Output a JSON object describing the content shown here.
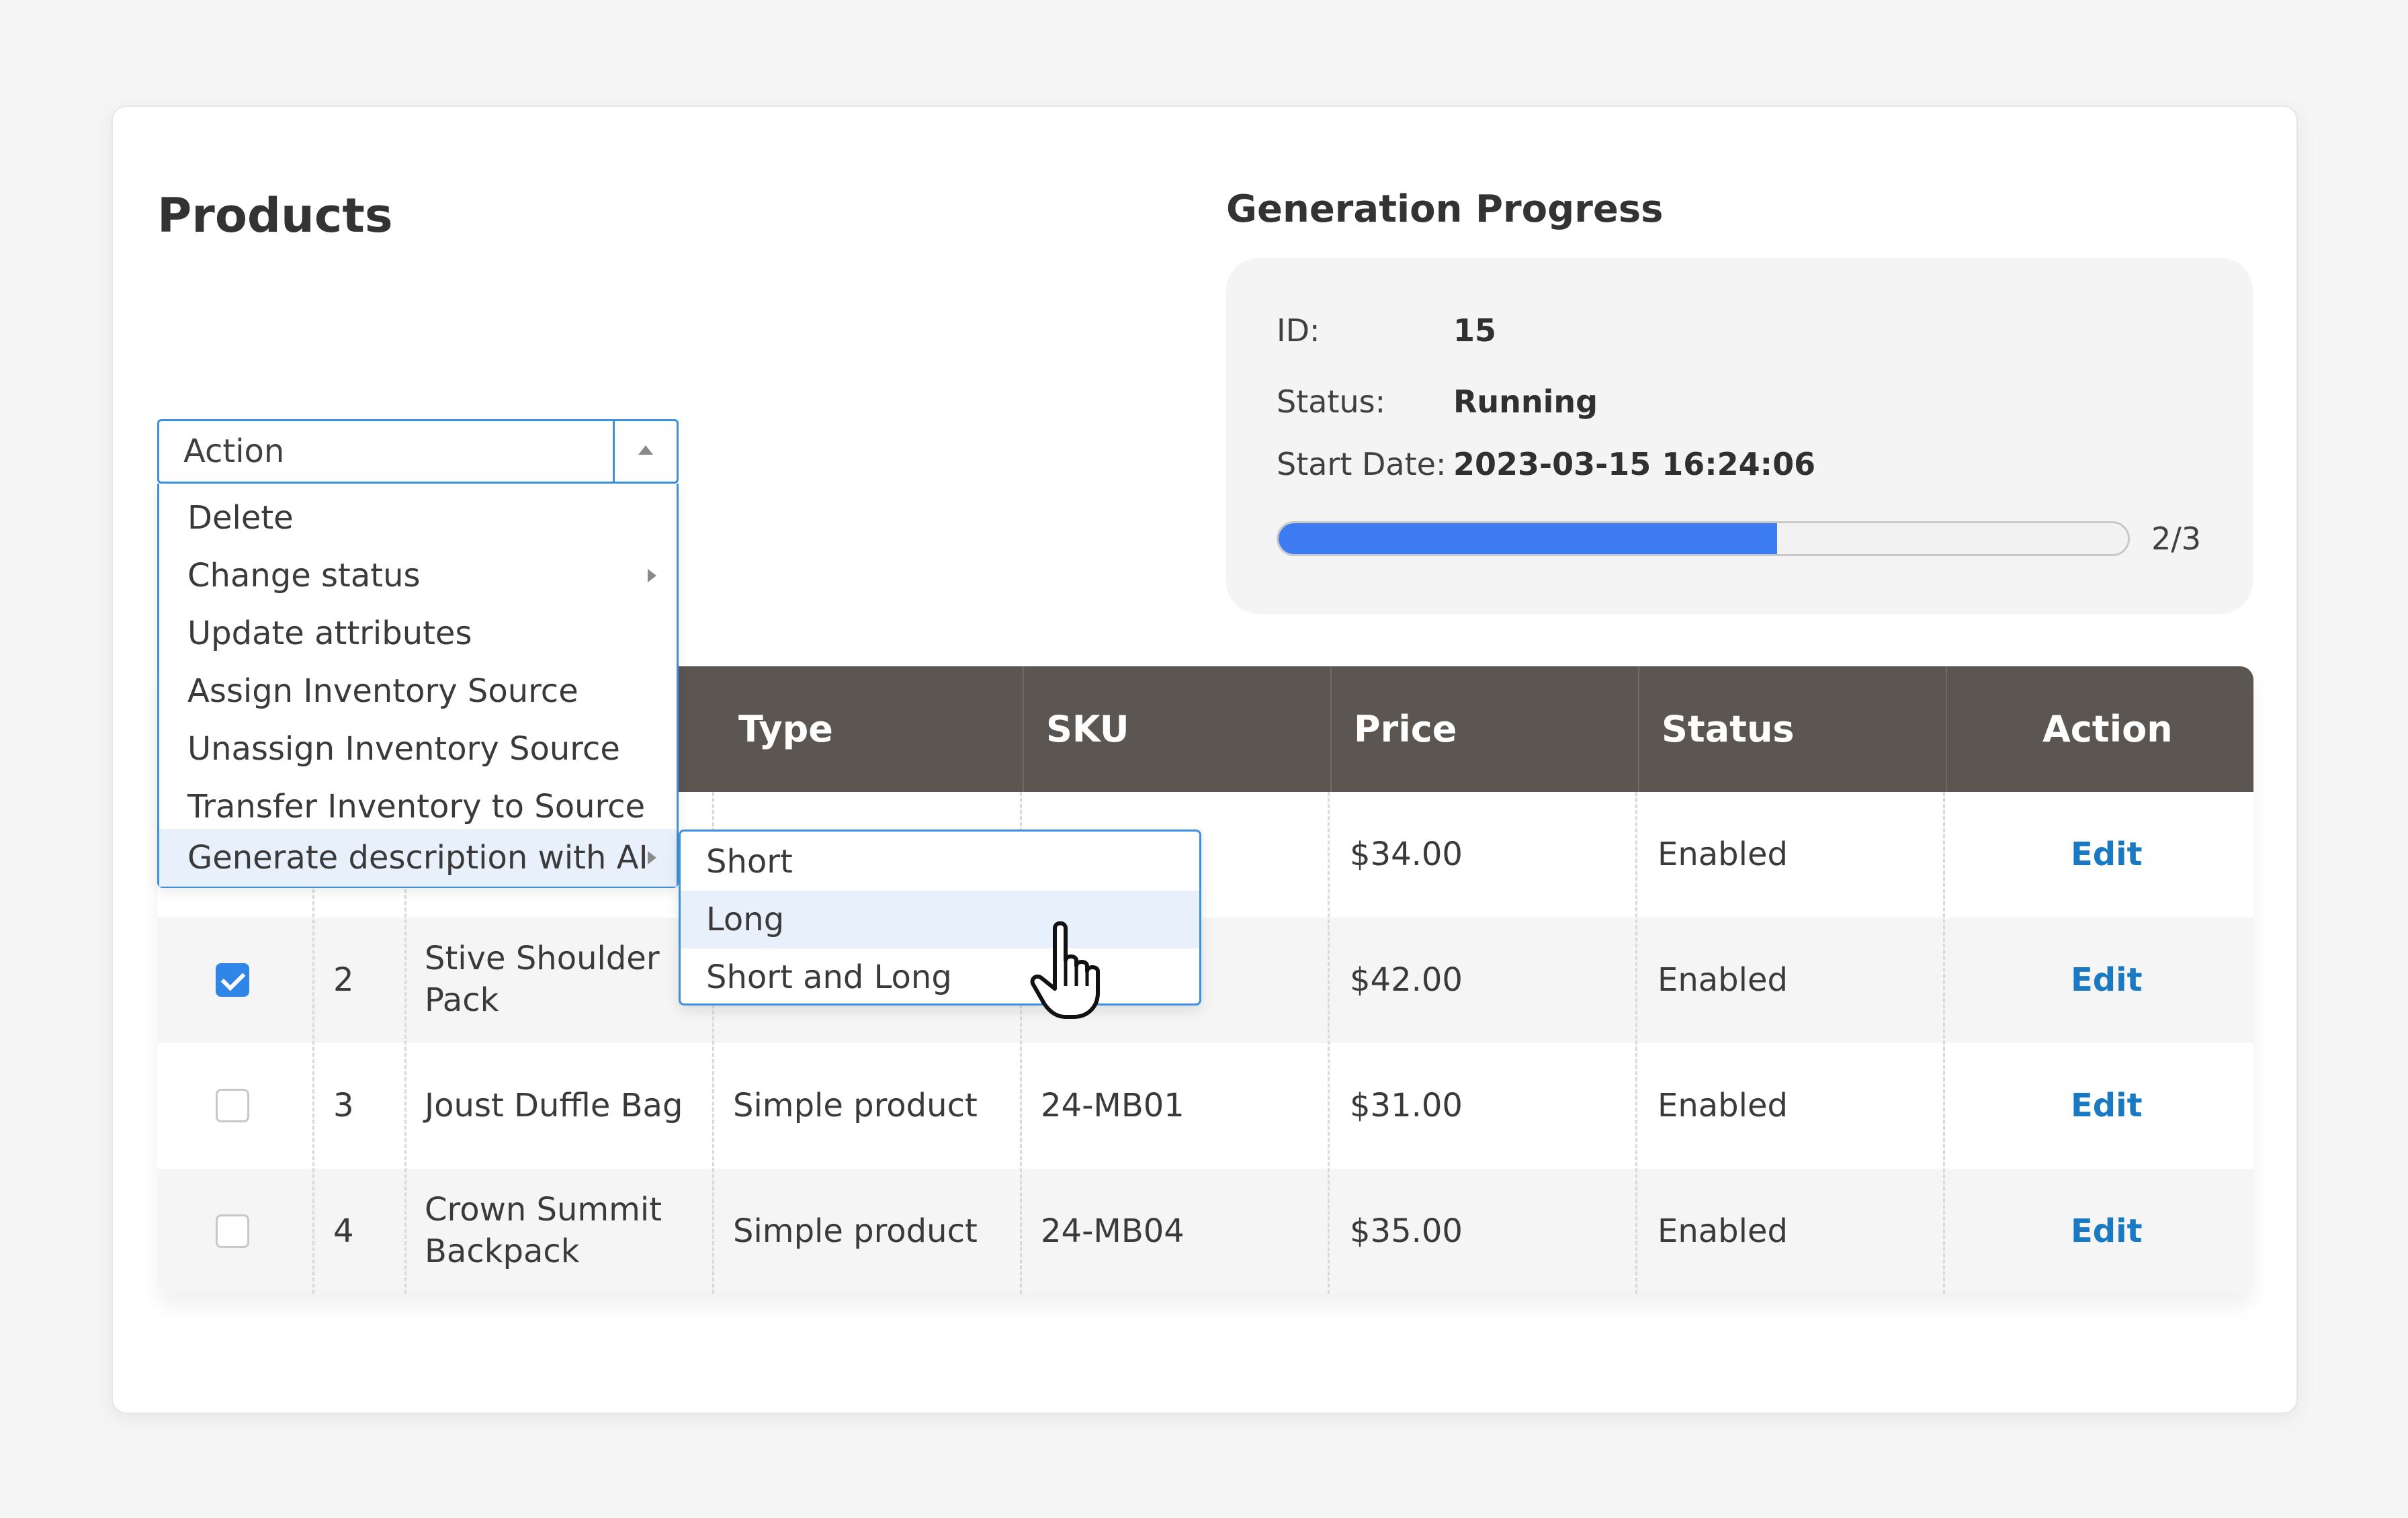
{
  "page": {
    "title": "Products"
  },
  "generation": {
    "title": "Generation Progress",
    "id_label": "ID:",
    "id_value": "15",
    "status_label": "Status:",
    "status_value": "Running",
    "start_label": "Start Date:",
    "start_value": "2023-03-15 16:24:06",
    "progress_text": "2/3",
    "progress_fraction": 0.5874,
    "progress_color": "#3d7bf2"
  },
  "action_select": {
    "label": "Action",
    "arrow_icon": "caret-up-icon",
    "items": [
      {
        "label": "Delete",
        "has_submenu": false
      },
      {
        "label": "Change status",
        "has_submenu": true
      },
      {
        "label": "Update attributes",
        "has_submenu": false
      },
      {
        "label": "Assign Inventory Source",
        "has_submenu": false
      },
      {
        "label": "Unassign Inventory Source",
        "has_submenu": false
      },
      {
        "label": "Transfer Inventory to Source",
        "has_submenu": false
      },
      {
        "label": "Generate description with AI",
        "has_submenu": true,
        "highlighted": true
      }
    ],
    "submenu": {
      "items": [
        {
          "label": "Short"
        },
        {
          "label": "Long",
          "highlighted": true
        },
        {
          "label": "Short and Long"
        }
      ]
    }
  },
  "table": {
    "headers": {
      "type": "Type",
      "sku": "SKU",
      "price": "Price",
      "status": "Status",
      "action": "Action"
    },
    "rows": [
      {
        "checked": false,
        "id": "",
        "name": "",
        "type": "",
        "sku": "",
        "price": "$34.00",
        "status": "Enabled",
        "action": "Edit"
      },
      {
        "checked": true,
        "id": "2",
        "name_line1": "Stive Shoulder",
        "name_line2": "Pack",
        "type": "",
        "sku": "",
        "price": "$42.00",
        "status": "Enabled",
        "action": "Edit"
      },
      {
        "checked": false,
        "id": "3",
        "name": "Joust Duffle Bag",
        "type": "Simple product",
        "sku": "24-MB01",
        "price": "$31.00",
        "status": "Enabled",
        "action": "Edit"
      },
      {
        "checked": false,
        "id": "4",
        "name_line1": "Crown Summit",
        "name_line2": "Backpack",
        "type": "Simple product",
        "sku": "24-MB04",
        "price": "$35.00",
        "status": "Enabled",
        "action": "Edit"
      }
    ]
  },
  "colors": {
    "header_bg": "#5b5652",
    "link": "#1979c3",
    "accent": "#3d8fe0",
    "checkbox_checked": "#2f86e6"
  },
  "cursor_icon": "hand-pointer-icon"
}
